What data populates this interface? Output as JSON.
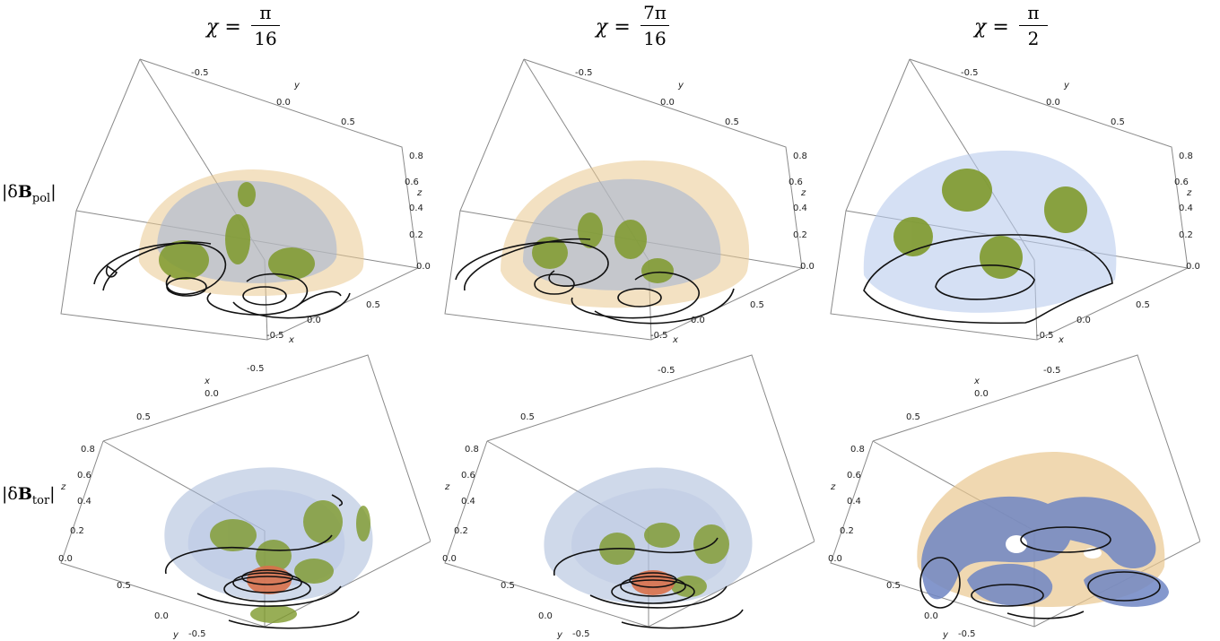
{
  "columns": [
    {
      "lhs": "χ =",
      "num": "π",
      "den": "16"
    },
    {
      "lhs": "χ =",
      "num": "7π",
      "den": "16"
    },
    {
      "lhs": "χ =",
      "num": "π",
      "den": "2"
    }
  ],
  "rows": [
    {
      "label_prefix": "|δ",
      "label_bold": "B",
      "label_sub": "pol",
      "label_suffix": "|"
    },
    {
      "label_prefix": "|δ",
      "label_bold": "B",
      "label_sub": "tor",
      "label_suffix": "|"
    }
  ],
  "axes_top": {
    "y_name": "y",
    "y_ticks": [
      "-0.5",
      "0.0",
      "0.5"
    ],
    "z_name": "z",
    "z_ticks": [
      "0.8",
      "0.6",
      "0.4",
      "0.2",
      "0.0"
    ],
    "x_name": "x",
    "x_ticks": [
      "0.5",
      "0.0",
      "-0.5"
    ]
  },
  "axes_bottom": {
    "x_name": "x",
    "x_ticks": [
      "-0.5",
      "0.0",
      "0.5"
    ],
    "z_name": "z",
    "z_ticks": [
      "0.8",
      "0.6",
      "0.4",
      "0.2",
      "0.0"
    ],
    "y_name": "y",
    "y_ticks": [
      "0.5",
      "0.0",
      "-0.5"
    ]
  },
  "colors": {
    "outer_shell": "#e9c890",
    "mid_shell": "#9fb3d6",
    "inner_blob": "#7f9a2c",
    "core_red": "#d8704a",
    "contour": "#111111",
    "box": "#8a8a8a"
  }
}
